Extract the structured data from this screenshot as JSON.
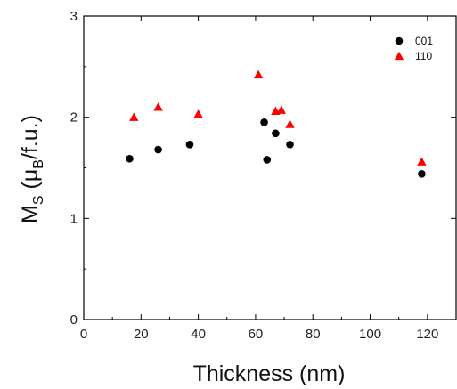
{
  "chart_data": {
    "type": "scatter",
    "xlabel": "Thickness (nm)",
    "ylabel": {
      "base": "M",
      "sub1": "S",
      "paren_open": " (μ",
      "sub2": "B",
      "rest": "/f.u.)"
    },
    "xlim": [
      0,
      130
    ],
    "ylim": [
      0,
      3
    ],
    "x_ticks": [
      0,
      20,
      40,
      60,
      80,
      100,
      120
    ],
    "y_ticks": [
      0,
      1,
      2,
      3
    ],
    "grid": false,
    "legend_position": "top-right",
    "series": [
      {
        "name": "001",
        "marker": "circle",
        "color": "#000000",
        "points": [
          [
            16,
            1.59
          ],
          [
            26,
            1.68
          ],
          [
            37,
            1.73
          ],
          [
            63,
            1.95
          ],
          [
            64,
            1.58
          ],
          [
            67,
            1.84
          ],
          [
            72,
            1.73
          ],
          [
            118,
            1.44
          ]
        ]
      },
      {
        "name": "110",
        "marker": "triangle",
        "color": "#ff0000",
        "points": [
          [
            17.5,
            2.0
          ],
          [
            26,
            2.1
          ],
          [
            40,
            2.03
          ],
          [
            61,
            2.42
          ],
          [
            67,
            2.06
          ],
          [
            69,
            2.07
          ],
          [
            72,
            1.93
          ],
          [
            118,
            1.56
          ]
        ]
      }
    ]
  }
}
